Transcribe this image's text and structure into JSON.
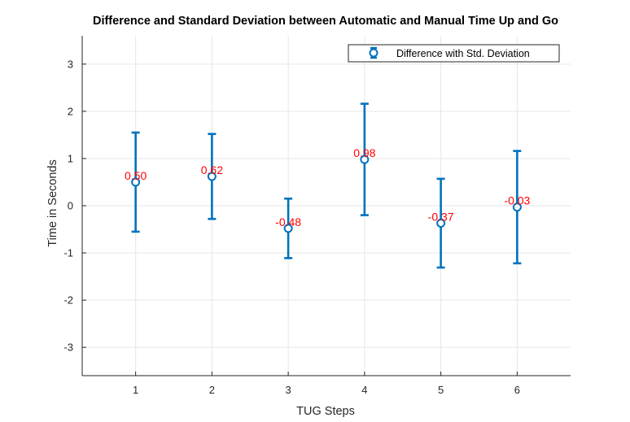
{
  "chart_data": {
    "type": "scatter",
    "title": "Difference and Standard Deviation between Automatic and Manual Time Up and Go",
    "xlabel": "TUG Steps",
    "ylabel": "Time in Seconds",
    "x": [
      1,
      2,
      3,
      4,
      5,
      6
    ],
    "x_ticks": [
      "1",
      "2",
      "3",
      "4",
      "5",
      "6"
    ],
    "xlim": [
      0.3,
      6.7
    ],
    "ylim": [
      -3.6,
      3.6
    ],
    "y_ticks": [
      "-3",
      "-2",
      "-1",
      "0",
      "1",
      "2",
      "3"
    ],
    "grid": true,
    "legend_position": "top-right",
    "series": [
      {
        "name": "Difference with Std. Deviation",
        "color": "#0072BD",
        "values": [
          0.5,
          0.62,
          -0.48,
          0.98,
          -0.37,
          -0.03
        ],
        "std": [
          1.05,
          0.9,
          0.63,
          1.18,
          0.94,
          1.19
        ]
      }
    ],
    "data_labels": [
      "0.50",
      "0.62",
      "-0.48",
      "0.98",
      "-0.37",
      "-0.03"
    ],
    "data_label_color": "#FF0000"
  }
}
